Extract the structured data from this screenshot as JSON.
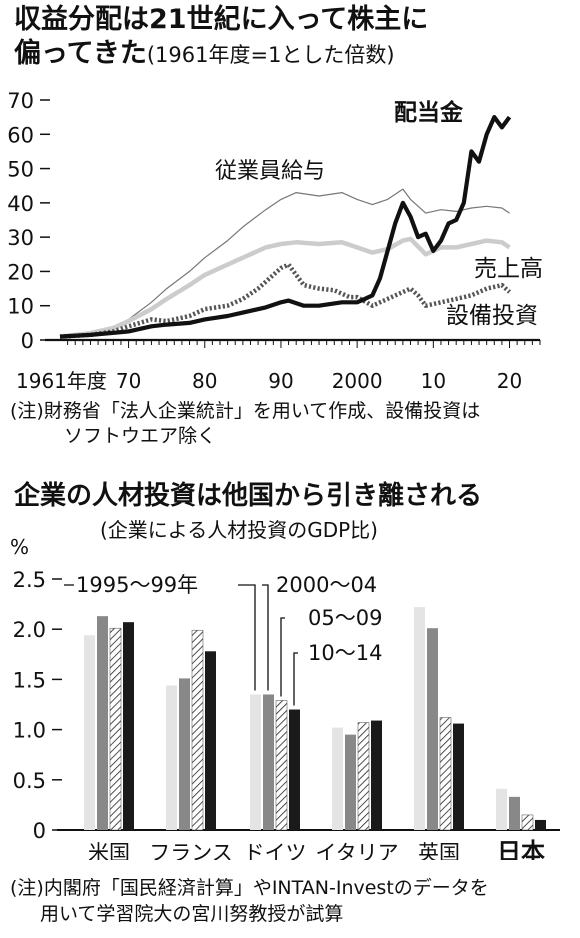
{
  "chart1": {
    "title_line1": "収益分配は21世紀に入って株主に",
    "title_line2": "偏ってきた",
    "subtitle": "(1961年度=1とした倍数)",
    "note_line1": "(注)財務省「法人企業統計」を用いて作成、設備投資は",
    "note_line2": "ソフトウエア除く"
  },
  "chart2": {
    "title": "企業の人材投資は他国から引き離される",
    "subtitle": "(企業による人材投資のGDP比)",
    "y_unit": "%",
    "note_line1": "(注)内閣府「国民経済計算」やINTAN-Investのデータを",
    "note_line2": "用いて学習院大の宮川努教授が試算"
  },
  "chart_data": [
    {
      "type": "line",
      "title": "収益分配は21世紀に入って株主に偏ってきた",
      "subtitle": "(1961年度=1とした倍数)",
      "ylim": [
        0,
        70
      ],
      "yticks": [
        0,
        10,
        20,
        30,
        40,
        50,
        60,
        70
      ],
      "xlim": [
        1961,
        2024
      ],
      "xtick_labels": [
        {
          "x": 1961,
          "label": "1961年度"
        },
        {
          "x": 1970,
          "label": "70"
        },
        {
          "x": 1980,
          "label": "80"
        },
        {
          "x": 1990,
          "label": "90"
        },
        {
          "x": 2000,
          "label": "2000"
        },
        {
          "x": 2010,
          "label": "10"
        },
        {
          "x": 2020,
          "label": "20"
        }
      ],
      "series": [
        {
          "name": "従業員給与",
          "color": "#777777",
          "style": "thin",
          "points": [
            [
              1961,
              1
            ],
            [
              1965,
              2
            ],
            [
              1968,
              3.5
            ],
            [
              1970,
              6
            ],
            [
              1973,
              11
            ],
            [
              1975,
              15
            ],
            [
              1978,
              20
            ],
            [
              1980,
              24
            ],
            [
              1983,
              29
            ],
            [
              1985,
              33
            ],
            [
              1988,
              38
            ],
            [
              1990,
              41
            ],
            [
              1992,
              43
            ],
            [
              1995,
              42
            ],
            [
              1998,
              43
            ],
            [
              2000,
              41
            ],
            [
              2002,
              39.5
            ],
            [
              2004,
              41
            ],
            [
              2006,
              44
            ],
            [
              2007,
              41
            ],
            [
              2009,
              37
            ],
            [
              2011,
              38
            ],
            [
              2013,
              37.5
            ],
            [
              2015,
              38.5
            ],
            [
              2017,
              39
            ],
            [
              2019,
              38.5
            ],
            [
              2020,
              37
            ]
          ]
        },
        {
          "name": "売上高",
          "color": "#cccccc",
          "style": "thick",
          "points": [
            [
              1961,
              1
            ],
            [
              1965,
              2
            ],
            [
              1968,
              3.5
            ],
            [
              1970,
              5.5
            ],
            [
              1973,
              9
            ],
            [
              1975,
              12
            ],
            [
              1978,
              16
            ],
            [
              1980,
              19
            ],
            [
              1983,
              22
            ],
            [
              1985,
              24
            ],
            [
              1988,
              27
            ],
            [
              1990,
              28
            ],
            [
              1992,
              28.5
            ],
            [
              1995,
              28
            ],
            [
              1998,
              28.5
            ],
            [
              2000,
              27
            ],
            [
              2002,
              25.5
            ],
            [
              2004,
              26.5
            ],
            [
              2006,
              29
            ],
            [
              2007,
              29.5
            ],
            [
              2009,
              25
            ],
            [
              2011,
              27
            ],
            [
              2013,
              27
            ],
            [
              2015,
              28
            ],
            [
              2017,
              29
            ],
            [
              2019,
              28.5
            ],
            [
              2020,
              27
            ]
          ]
        },
        {
          "name": "設備投資",
          "color": "#555555",
          "style": "dotted",
          "points": [
            [
              1961,
              1
            ],
            [
              1965,
              1.5
            ],
            [
              1968,
              2.5
            ],
            [
              1970,
              4
            ],
            [
              1973,
              6
            ],
            [
              1975,
              5.5
            ],
            [
              1978,
              7
            ],
            [
              1980,
              9
            ],
            [
              1983,
              10
            ],
            [
              1985,
              12
            ],
            [
              1987,
              15
            ],
            [
              1989,
              19
            ],
            [
              1990,
              21
            ],
            [
              1991,
              22
            ],
            [
              1992,
              19
            ],
            [
              1993,
              16
            ],
            [
              1995,
              15
            ],
            [
              1997,
              14.5
            ],
            [
              1999,
              12.5
            ],
            [
              2000,
              12.5
            ],
            [
              2002,
              10
            ],
            [
              2004,
              12
            ],
            [
              2006,
              14
            ],
            [
              2007,
              15
            ],
            [
              2008,
              13
            ],
            [
              2009,
              10
            ],
            [
              2011,
              11
            ],
            [
              2013,
              12
            ],
            [
              2015,
              13
            ],
            [
              2017,
              15
            ],
            [
              2019,
              16
            ],
            [
              2020,
              14
            ]
          ]
        },
        {
          "name": "配当金",
          "color": "#111111",
          "style": "bold",
          "points": [
            [
              1961,
              1
            ],
            [
              1965,
              1.5
            ],
            [
              1970,
              2.5
            ],
            [
              1973,
              4
            ],
            [
              1975,
              4.5
            ],
            [
              1978,
              5
            ],
            [
              1980,
              6
            ],
            [
              1983,
              7
            ],
            [
              1985,
              8
            ],
            [
              1988,
              9.5
            ],
            [
              1990,
              11
            ],
            [
              1991,
              11.5
            ],
            [
              1993,
              10
            ],
            [
              1995,
              10
            ],
            [
              1998,
              11
            ],
            [
              2000,
              11
            ],
            [
              2001,
              12
            ],
            [
              2002,
              13
            ],
            [
              2003,
              18
            ],
            [
              2004,
              26
            ],
            [
              2005,
              34
            ],
            [
              2006,
              40
            ],
            [
              2007,
              36
            ],
            [
              2008,
              30
            ],
            [
              2009,
              31
            ],
            [
              2010,
              26
            ],
            [
              2011,
              29
            ],
            [
              2012,
              34
            ],
            [
              2013,
              35
            ],
            [
              2014,
              40
            ],
            [
              2015,
              55
            ],
            [
              2016,
              52
            ],
            [
              2017,
              60
            ],
            [
              2018,
              65
            ],
            [
              2019,
              62
            ],
            [
              2020,
              65
            ]
          ]
        }
      ]
    },
    {
      "type": "bar",
      "title": "企業の人材投資は他国から引き離される",
      "subtitle": "(企業による人材投資のGDP比)",
      "ylabel": "%",
      "ylim": [
        0,
        2.5
      ],
      "yticks": [
        0,
        0.5,
        1.0,
        1.5,
        2.0,
        2.5
      ],
      "ytick_labels": [
        "0",
        "0.5",
        "1.0",
        "1.5",
        "2.0",
        "2.5"
      ],
      "categories": [
        "米国",
        "フランス",
        "ドイツ",
        "イタリア",
        "英国",
        "日本"
      ],
      "series": [
        {
          "name": "1995～99年",
          "fill": "#e4e4e4",
          "values": [
            1.94,
            1.44,
            1.35,
            1.02,
            2.22,
            0.41
          ]
        },
        {
          "name": "2000～04",
          "fill": "#888888",
          "values": [
            2.13,
            1.51,
            1.35,
            0.95,
            2.01,
            0.33
          ]
        },
        {
          "name": "05～09",
          "fill": "hatch",
          "values": [
            2.01,
            1.99,
            1.29,
            1.07,
            1.12,
            0.15
          ]
        },
        {
          "name": "10～14",
          "fill": "#1a1a1a",
          "values": [
            2.07,
            1.78,
            1.2,
            1.09,
            1.06,
            0.1
          ]
        }
      ]
    }
  ]
}
